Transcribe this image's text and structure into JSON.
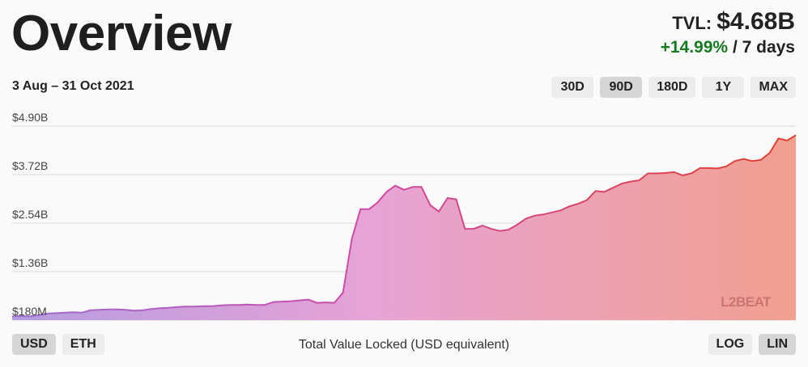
{
  "header": {
    "title": "Overview",
    "tvl_label": "TVL:",
    "tvl_value": "$4.68B",
    "change": "+14.99%",
    "change_period": "/ 7 days"
  },
  "range_label": "3 Aug – 31 Oct 2021",
  "ranges": [
    {
      "label": "30D",
      "active": false
    },
    {
      "label": "90D",
      "active": true
    },
    {
      "label": "180D",
      "active": false
    },
    {
      "label": "1Y",
      "active": false
    },
    {
      "label": "MAX",
      "active": false
    }
  ],
  "currencies": [
    {
      "label": "USD",
      "active": true
    },
    {
      "label": "ETH",
      "active": false
    }
  ],
  "scales": [
    {
      "label": "LOG",
      "active": false
    },
    {
      "label": "LIN",
      "active": true
    }
  ],
  "caption": "Total Value Locked (USD equivalent)",
  "watermark": "L2BEAT",
  "colors": {
    "gradient_start": "#9b6fd0",
    "gradient_mid": "#cf5bb0",
    "gradient_end": "#e0402e",
    "positive": "#167a1f"
  },
  "chart_data": {
    "type": "area",
    "title": "",
    "xlabel": "",
    "ylabel": "Total Value Locked (USD equivalent)",
    "ylim": [
      0.18,
      4.9
    ],
    "grid": true,
    "y_ticks": [
      {
        "value": 4.9,
        "label": "$4.90B"
      },
      {
        "value": 3.72,
        "label": "$3.72B"
      },
      {
        "value": 2.54,
        "label": "$2.54B"
      },
      {
        "value": 1.36,
        "label": "$1.36B"
      },
      {
        "value": 0.18,
        "label": "$180M"
      }
    ],
    "x_start": "2021-08-03",
    "x_end": "2021-10-31",
    "series": [
      {
        "values": [
          0.27,
          0.28,
          0.27,
          0.3,
          0.34,
          0.35,
          0.36,
          0.37,
          0.36,
          0.42,
          0.43,
          0.44,
          0.44,
          0.43,
          0.41,
          0.42,
          0.45,
          0.47,
          0.48,
          0.5,
          0.51,
          0.51,
          0.52,
          0.52,
          0.54,
          0.55,
          0.55,
          0.56,
          0.55,
          0.55,
          0.62,
          0.63,
          0.64,
          0.66,
          0.68,
          0.6,
          0.61,
          0.6,
          0.85,
          2.15,
          2.88,
          2.88,
          3.05,
          3.3,
          3.45,
          3.35,
          3.42,
          3.42,
          2.98,
          2.82,
          3.15,
          3.12,
          2.4,
          2.4,
          2.48,
          2.4,
          2.35,
          2.38,
          2.5,
          2.65,
          2.72,
          2.75,
          2.8,
          2.85,
          2.95,
          3.01,
          3.1,
          3.32,
          3.3,
          3.4,
          3.5,
          3.55,
          3.58,
          3.75,
          3.75,
          3.76,
          3.78,
          3.7,
          3.75,
          3.88,
          3.88,
          3.87,
          3.92,
          4.05,
          4.1,
          4.05,
          4.08,
          4.25,
          4.6,
          4.55,
          4.68
        ]
      }
    ]
  }
}
